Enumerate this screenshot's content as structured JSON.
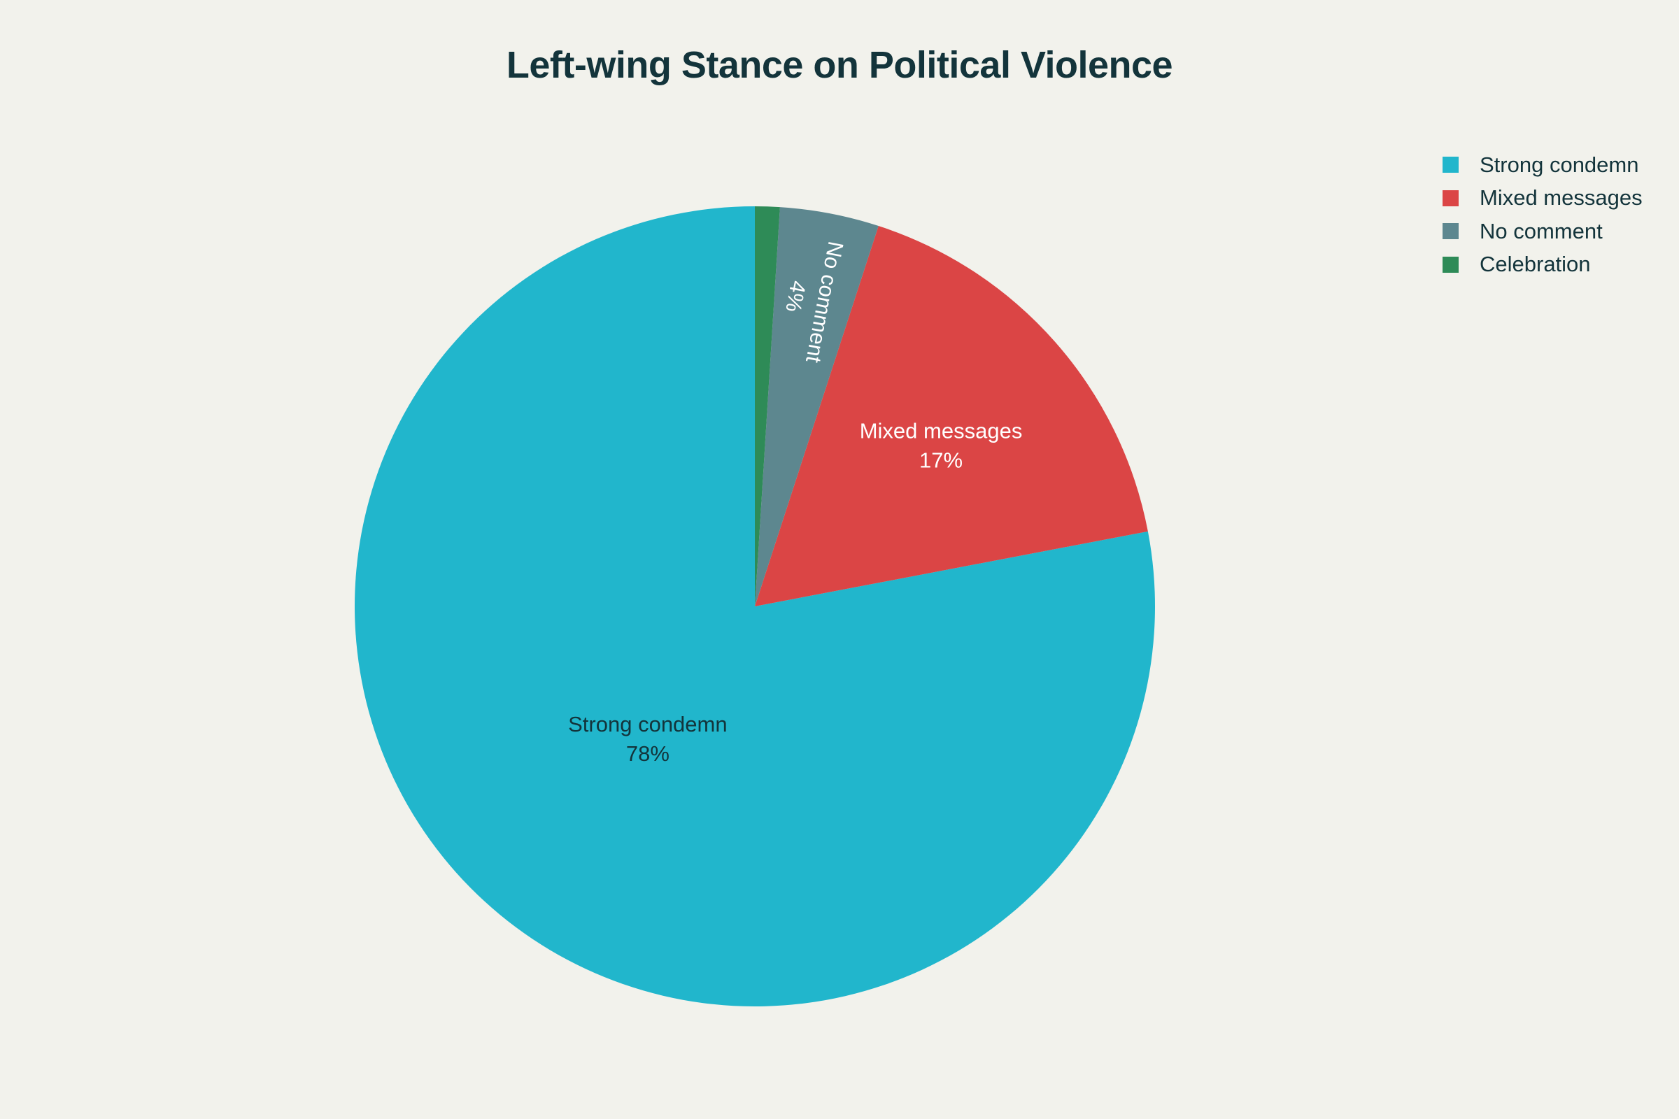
{
  "chart_data": {
    "type": "pie",
    "title": "Left-wing Stance on Political Violence",
    "slices": [
      {
        "label": "Strong condemn",
        "value": 78,
        "display": "78%",
        "color": "#21b6cc",
        "label_color": "#13343b"
      },
      {
        "label": "Mixed messages",
        "value": 17,
        "display": "17%",
        "color": "#db4545",
        "label_color": "#ffffff"
      },
      {
        "label": "No comment",
        "value": 4,
        "display": "4%",
        "color": "#5d878f",
        "label_color": "#ffffff"
      },
      {
        "label": "Celebration",
        "value": 1,
        "display": "",
        "color": "#2e8b57",
        "label_color": "#ffffff"
      }
    ],
    "legend_position": "top-right",
    "direction": "counterclockwise",
    "start": "12 o'clock"
  }
}
